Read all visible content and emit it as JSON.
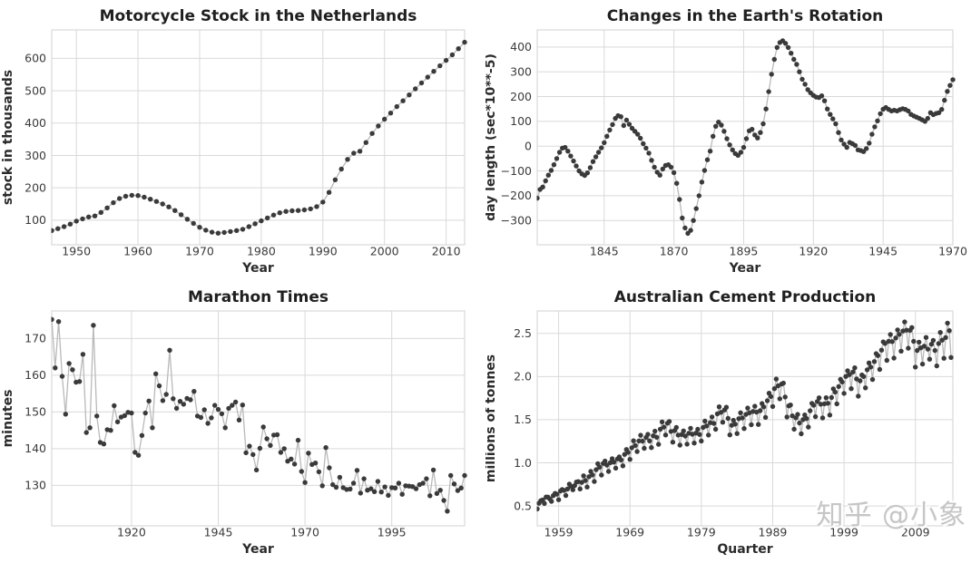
{
  "watermark": {
    "text": "知乎 @小象"
  },
  "style": {
    "marker_color": "#3a3a3a",
    "line_color": "#b9b9b9",
    "grid_color": "#d9d9d9",
    "title_color": "#1f1f1f",
    "tick_color": "#3b3b3b",
    "background": "#ffffff"
  },
  "chart_data": [
    {
      "type": "scatter",
      "title": "Motorcycle Stock in the Netherlands",
      "xlabel": "Year",
      "ylabel": "stock in thousands",
      "legend": "none",
      "grid": true,
      "x_start": 1946,
      "x_step": 1,
      "xlim": [
        1946,
        2013
      ],
      "ylim": [
        24,
        688
      ],
      "xticks": [
        {
          "value": 1950,
          "label": "1950"
        },
        {
          "value": 1960,
          "label": "1960"
        },
        {
          "value": 1970,
          "label": "1970"
        },
        {
          "value": 1980,
          "label": "1980"
        },
        {
          "value": 1990,
          "label": "1990"
        },
        {
          "value": 2000,
          "label": "2000"
        },
        {
          "value": 2010,
          "label": "2010"
        }
      ],
      "yticks": [
        {
          "value": 100,
          "label": "100"
        },
        {
          "value": 200,
          "label": "200"
        },
        {
          "value": 300,
          "label": "300"
        },
        {
          "value": 400,
          "label": "400"
        },
        {
          "value": 500,
          "label": "500"
        },
        {
          "value": 600,
          "label": "600"
        }
      ],
      "values": [
        68,
        74,
        80,
        88,
        97,
        104,
        110,
        113,
        124,
        138,
        154,
        167,
        174,
        177,
        176,
        171,
        165,
        158,
        150,
        141,
        130,
        117,
        103,
        90,
        78,
        69,
        63,
        60,
        62,
        65,
        68,
        72,
        80,
        89,
        98,
        107,
        116,
        123,
        127,
        129,
        130,
        132,
        135,
        142,
        156,
        186,
        225,
        258,
        288,
        307,
        313,
        340,
        368,
        391,
        412,
        431,
        451,
        469,
        487,
        506,
        524,
        542,
        560,
        577,
        594,
        611,
        630,
        650
      ]
    },
    {
      "type": "scatter",
      "title": "Changes in the Earth's Rotation",
      "xlabel": "Year",
      "ylabel": "day length (sec*10**-5)",
      "legend": "none",
      "grid": true,
      "x_start": 1821,
      "x_step": 1,
      "xlim": [
        1821,
        1970
      ],
      "ylim": [
        -398,
        469
      ],
      "xticks": [
        {
          "value": 1845,
          "label": "1845"
        },
        {
          "value": 1870,
          "label": "1870"
        },
        {
          "value": 1895,
          "label": "1895"
        },
        {
          "value": 1920,
          "label": "1920"
        },
        {
          "value": 1945,
          "label": "1945"
        },
        {
          "value": 1970,
          "label": "1970"
        }
      ],
      "yticks": [
        {
          "value": -300,
          "label": "−300"
        },
        {
          "value": -200,
          "label": "−200"
        },
        {
          "value": -100,
          "label": "−100"
        },
        {
          "value": 0,
          "label": "0"
        },
        {
          "value": 100,
          "label": "100"
        },
        {
          "value": 200,
          "label": "200"
        },
        {
          "value": 300,
          "label": "300"
        },
        {
          "value": 400,
          "label": "400"
        }
      ],
      "values": [
        -210,
        -175,
        -165,
        -140,
        -117,
        -98,
        -75,
        -50,
        -25,
        -8,
        -5,
        -20,
        -40,
        -60,
        -80,
        -100,
        -112,
        -118,
        -108,
        -87,
        -62,
        -43,
        -25,
        -7,
        14,
        40,
        65,
        87,
        112,
        123,
        119,
        83,
        105,
        88,
        72,
        60,
        48,
        32,
        10,
        -8,
        -28,
        -57,
        -85,
        -105,
        -117,
        -92,
        -78,
        -75,
        -85,
        -107,
        -150,
        -215,
        -290,
        -330,
        -352,
        -340,
        -300,
        -252,
        -200,
        -145,
        -98,
        -55,
        -20,
        40,
        80,
        97,
        85,
        60,
        30,
        5,
        -15,
        -30,
        -37,
        -25,
        -5,
        30,
        62,
        68,
        45,
        33,
        55,
        90,
        150,
        220,
        290,
        350,
        398,
        418,
        425,
        415,
        398,
        375,
        350,
        330,
        300,
        270,
        250,
        228,
        215,
        205,
        198,
        196,
        203,
        183,
        150,
        128,
        110,
        90,
        55,
        25,
        8,
        -5,
        15,
        10,
        3,
        -15,
        -18,
        -22,
        -10,
        12,
        48,
        78,
        102,
        131,
        149,
        156,
        148,
        142,
        145,
        142,
        147,
        151,
        148,
        142,
        128,
        122,
        117,
        112,
        106,
        100,
        112,
        135,
        127,
        132,
        135,
        148,
        185,
        221,
        245,
        268
      ]
    },
    {
      "type": "scatter",
      "title": "Marathon Times",
      "xlabel": "Year",
      "ylabel": "minutes",
      "legend": "none",
      "grid": true,
      "x_start": 1897,
      "x_step": 1,
      "xlim": [
        1897,
        2016
      ],
      "ylim": [
        119,
        177.5
      ],
      "xticks": [
        {
          "value": 1920,
          "label": "1920"
        },
        {
          "value": 1945,
          "label": "1945"
        },
        {
          "value": 1970,
          "label": "1970"
        },
        {
          "value": 1995,
          "label": "1995"
        }
      ],
      "yticks": [
        {
          "value": 130,
          "label": "130"
        },
        {
          "value": 140,
          "label": "140"
        },
        {
          "value": 150,
          "label": "150"
        },
        {
          "value": 160,
          "label": "160"
        },
        {
          "value": 170,
          "label": "170"
        }
      ],
      "values": [
        175.2,
        162.0,
        174.6,
        159.7,
        149.4,
        163.2,
        161.5,
        158.1,
        158.3,
        165.7,
        144.4,
        145.7,
        173.6,
        148.9,
        141.7,
        141.3,
        145.2,
        145.0,
        151.7,
        147.3,
        148.6,
        149.0,
        149.9,
        149.7,
        139.0,
        138.2,
        143.6,
        149.7,
        153.0,
        145.7,
        160.4,
        157.1,
        153.1,
        154.8,
        166.8,
        153.6,
        151.0,
        152.9,
        152.1,
        153.7,
        153.3,
        155.6,
        148.9,
        148.5,
        150.6,
        146.9,
        148.4,
        151.8,
        150.7,
        149.5,
        145.7,
        151.0,
        151.8,
        152.7,
        147.8,
        151.9,
        138.9,
        140.7,
        138.4,
        134.2,
        140.1,
        145.9,
        142.7,
        140.9,
        143.7,
        143.8,
        139.0,
        140.0,
        136.6,
        137.2,
        135.8,
        142.3,
        133.8,
        130.8,
        138.8,
        135.7,
        136.1,
        133.7,
        129.9,
        140.3,
        134.8,
        130.2,
        129.5,
        132.2,
        129.4,
        128.9,
        129.0,
        130.6,
        134.1,
        127.9,
        131.8,
        128.7,
        129.1,
        128.3,
        131.1,
        128.2,
        129.6,
        127.3,
        129.4,
        129.3,
        130.6,
        127.6,
        129.9,
        129.8,
        129.7,
        129.1,
        130.2,
        130.6,
        131.8,
        127.2,
        134.2,
        127.8,
        128.7,
        125.9,
        123.0,
        132.7,
        130.4,
        128.6,
        129.3,
        132.7
      ]
    },
    {
      "type": "scatter",
      "title": "Australian Cement Production",
      "xlabel": "Quarter",
      "ylabel": "millions of tonnes",
      "legend": "none",
      "grid": true,
      "x_start": 1956,
      "x_step": 0.25,
      "xlim": [
        1956,
        2014.25
      ],
      "ylim": [
        0.27,
        2.76
      ],
      "xticks": [
        {
          "value": 1959,
          "label": "1959"
        },
        {
          "value": 1969,
          "label": "1969"
        },
        {
          "value": 1979,
          "label": "1979"
        },
        {
          "value": 1989,
          "label": "1989"
        },
        {
          "value": 1999,
          "label": "1999"
        },
        {
          "value": 2009,
          "label": "2009"
        }
      ],
      "yticks": [
        {
          "value": 0.5,
          "label": "0.5"
        },
        {
          "value": 1.0,
          "label": "1.0"
        },
        {
          "value": 1.5,
          "label": "1.5"
        },
        {
          "value": 2.0,
          "label": "2.0"
        },
        {
          "value": 2.5,
          "label": "2.5"
        }
      ],
      "values": [
        0.465,
        0.532,
        0.561,
        0.57,
        0.529,
        0.604,
        0.603,
        0.582,
        0.554,
        0.62,
        0.646,
        0.637,
        0.573,
        0.673,
        0.69,
        0.681,
        0.621,
        0.698,
        0.753,
        0.728,
        0.688,
        0.737,
        0.777,
        0.783,
        0.698,
        0.773,
        0.85,
        0.795,
        0.72,
        0.839,
        0.9,
        0.86,
        0.784,
        0.92,
        0.99,
        0.95,
        0.858,
        0.993,
        1.02,
        0.974,
        0.9,
        1.002,
        1.047,
        1.009,
        0.938,
        1.045,
        1.069,
        1.034,
        0.965,
        1.098,
        1.155,
        1.122,
        1.04,
        1.175,
        1.256,
        1.201,
        1.13,
        1.253,
        1.32,
        1.251,
        1.168,
        1.293,
        1.33,
        1.254,
        1.177,
        1.313,
        1.367,
        1.296,
        1.215,
        1.389,
        1.474,
        1.414,
        1.323,
        1.459,
        1.479,
        1.364,
        1.24,
        1.373,
        1.41,
        1.322,
        1.205,
        1.328,
        1.37,
        1.31,
        1.217,
        1.344,
        1.4,
        1.331,
        1.229,
        1.345,
        1.389,
        1.329,
        1.252,
        1.41,
        1.483,
        1.428,
        1.322,
        1.466,
        1.532,
        1.457,
        1.389,
        1.568,
        1.65,
        1.585,
        1.471,
        1.613,
        1.644,
        1.515,
        1.324,
        1.435,
        1.493,
        1.449,
        1.34,
        1.512,
        1.58,
        1.52,
        1.397,
        1.561,
        1.635,
        1.58,
        1.441,
        1.596,
        1.656,
        1.587,
        1.445,
        1.604,
        1.687,
        1.648,
        1.527,
        1.72,
        1.807,
        1.768,
        1.653,
        1.86,
        1.971,
        1.892,
        1.742,
        1.913,
        1.924,
        1.763,
        1.531,
        1.66,
        1.671,
        1.544,
        1.39,
        1.521,
        1.561,
        1.461,
        1.336,
        1.501,
        1.555,
        1.513,
        1.414,
        1.603,
        1.689,
        1.667,
        1.535,
        1.71,
        1.754,
        1.679,
        1.52,
        1.684,
        1.755,
        1.69,
        1.554,
        1.757,
        1.858,
        1.82,
        1.683,
        1.884,
        1.967,
        1.936,
        1.805,
        2.001,
        2.067,
        2.022,
        1.86,
        2.053,
        2.101,
        1.972,
        1.772,
        1.95,
        2.018,
        2.0,
        1.869,
        2.078,
        2.158,
        2.11,
        1.966,
        2.174,
        2.265,
        2.243,
        2.082,
        2.306,
        2.402,
        2.383,
        2.187,
        2.408,
        2.487,
        2.405,
        2.214,
        2.447,
        2.54,
        2.489,
        2.295,
        2.528,
        2.633,
        2.537,
        2.328,
        2.535,
        2.568,
        2.408,
        2.11,
        2.302,
        2.399,
        2.332,
        2.144,
        2.352,
        2.453,
        2.318,
        2.201,
        2.374,
        2.42,
        2.302,
        2.123,
        2.382,
        2.511,
        2.422,
        2.212,
        2.452,
        2.619,
        2.532,
        2.221
      ]
    }
  ]
}
